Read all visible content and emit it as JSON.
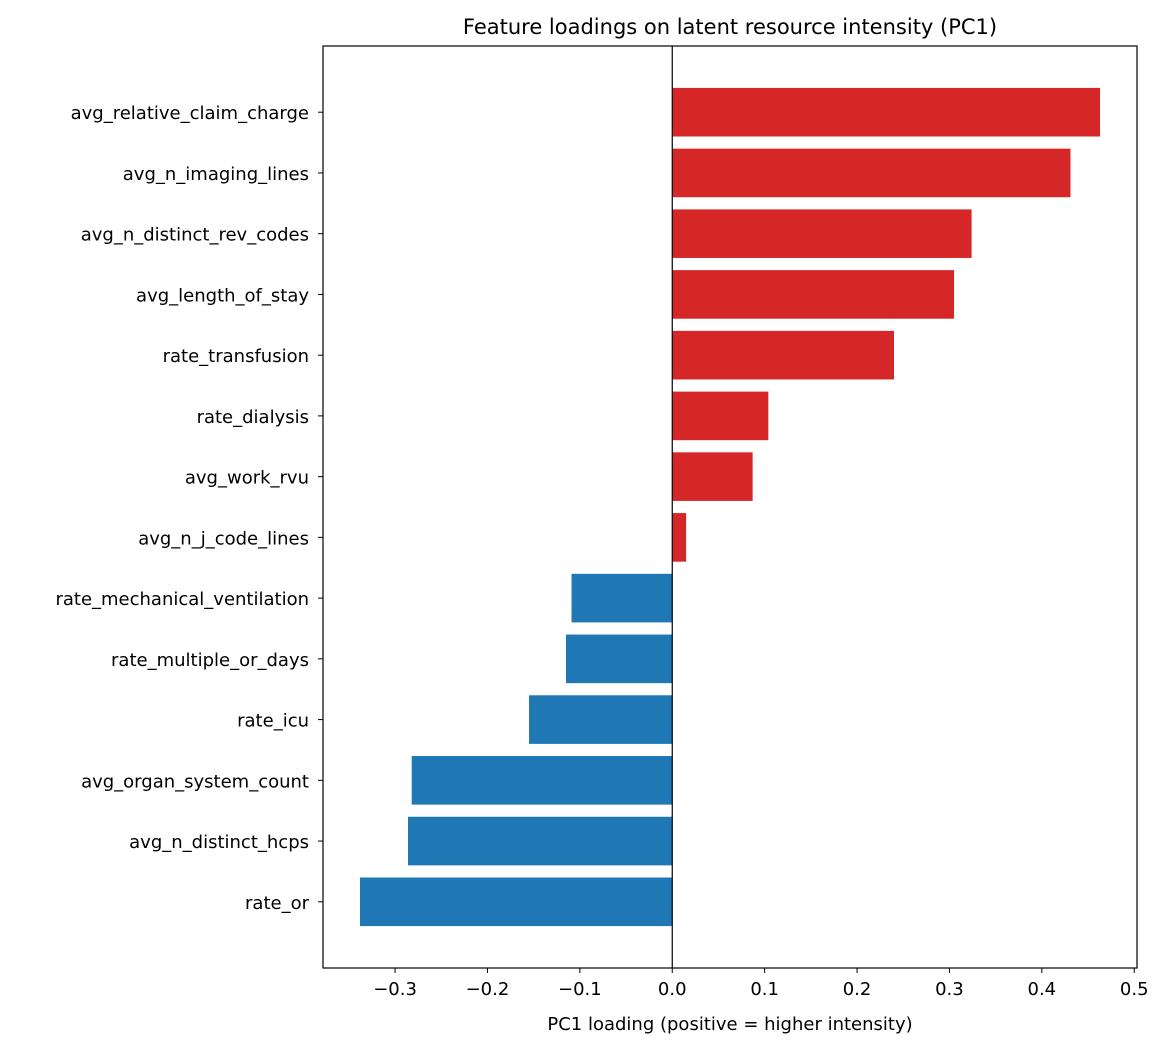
{
  "chart_data": {
    "type": "bar",
    "orientation": "horizontal",
    "title": "Feature loadings on latent resource intensity (PC1)",
    "xlabel": "PC1 loading (positive = higher intensity)",
    "ylabel": "",
    "xlim": [
      -0.378,
      0.503
    ],
    "xticks": [
      -0.3,
      -0.2,
      -0.1,
      0.0,
      0.1,
      0.2,
      0.3,
      0.4,
      0.5
    ],
    "xtick_labels": [
      "−0.3",
      "−0.2",
      "−0.1",
      "0.0",
      "0.1",
      "0.2",
      "0.3",
      "0.4",
      "0.5"
    ],
    "grid": false,
    "zero_line": true,
    "colors": {
      "positive": "#d62728",
      "negative": "#1f77b4",
      "zero_line": "#000000"
    },
    "categories": [
      "avg_relative_claim_charge",
      "avg_n_imaging_lines",
      "avg_n_distinct_rev_codes",
      "avg_length_of_stay",
      "rate_transfusion",
      "rate_dialysis",
      "avg_work_rvu",
      "avg_n_j_code_lines",
      "rate_mechanical_ventilation",
      "rate_multiple_or_days",
      "rate_icu",
      "avg_organ_system_count",
      "avg_n_distinct_hcps",
      "rate_or"
    ],
    "values": [
      0.463,
      0.431,
      0.324,
      0.305,
      0.24,
      0.104,
      0.087,
      0.015,
      -0.109,
      -0.115,
      -0.155,
      -0.282,
      -0.286,
      -0.338
    ]
  }
}
